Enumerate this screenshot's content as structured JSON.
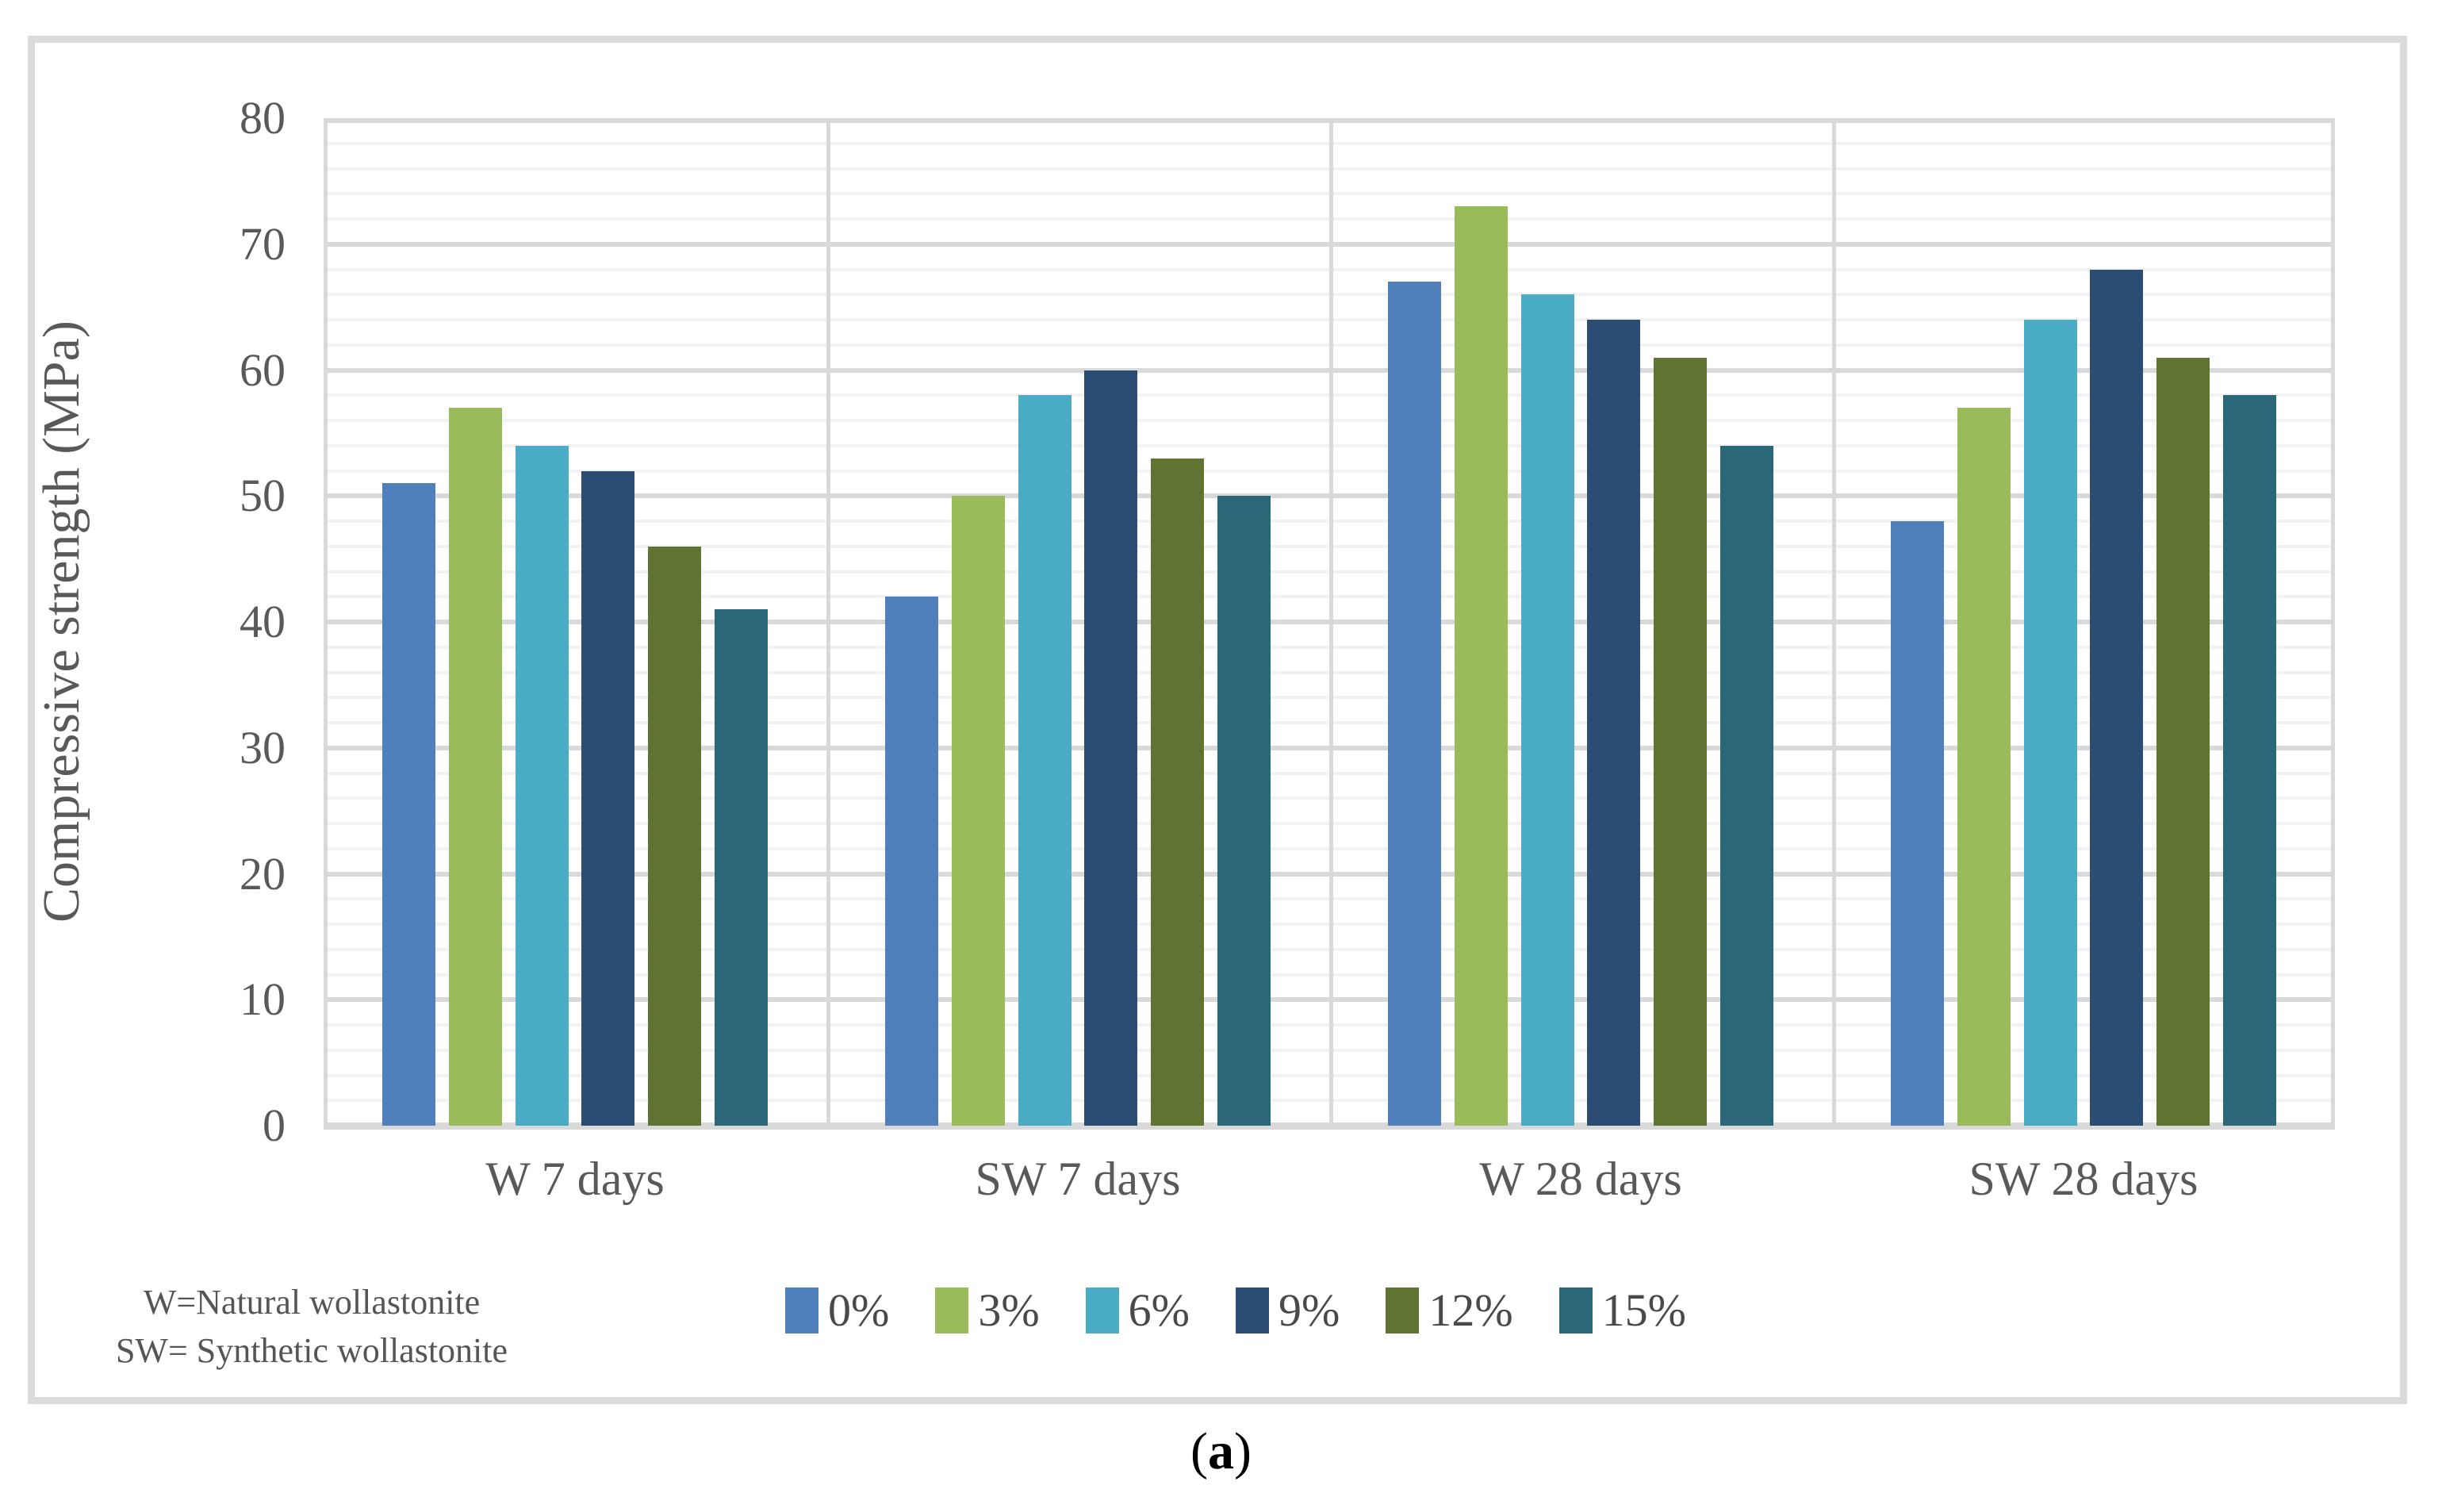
{
  "chart_data": {
    "type": "bar",
    "title": "",
    "xlabel": "",
    "ylabel": "Compressive strength (MPa)",
    "ylim": [
      0,
      80
    ],
    "yticks": [
      0,
      10,
      20,
      30,
      40,
      50,
      60,
      70,
      80
    ],
    "minor_grid_step": 2,
    "major_grid_step": 10,
    "grid": {
      "major": true,
      "minor": true
    },
    "legend_position": "bottom",
    "categories": [
      "W 7 days",
      "SW 7 days",
      "W 28 days",
      "SW 28 days"
    ],
    "series": [
      {
        "name": "0%",
        "color": "#4F80BC",
        "values": [
          51,
          42,
          67,
          48
        ]
      },
      {
        "name": "3%",
        "color": "#9ABB59",
        "values": [
          57,
          50,
          73,
          57
        ]
      },
      {
        "name": "6%",
        "color": "#4AACC5",
        "values": [
          54,
          58,
          66,
          64
        ]
      },
      {
        "name": "9%",
        "color": "#2B4D74",
        "values": [
          52,
          60,
          64,
          68
        ]
      },
      {
        "name": "12%",
        "color": "#5F7430",
        "values": [
          46,
          53,
          61,
          61
        ]
      },
      {
        "name": "15%",
        "color": "#2A6879",
        "values": [
          41,
          50,
          54,
          58
        ]
      }
    ]
  },
  "colors": {
    "grid_major": "#d9d9d9",
    "grid_minor": "#f2f2f2",
    "frame_border": "#dbdbdb",
    "axis_text": "#595959"
  },
  "footnote": {
    "lines": [
      "W=Natural wollastonite",
      "SW= Synthetic wollastonite"
    ]
  },
  "caption": {
    "open": "(",
    "label": "a",
    "close": ")"
  }
}
